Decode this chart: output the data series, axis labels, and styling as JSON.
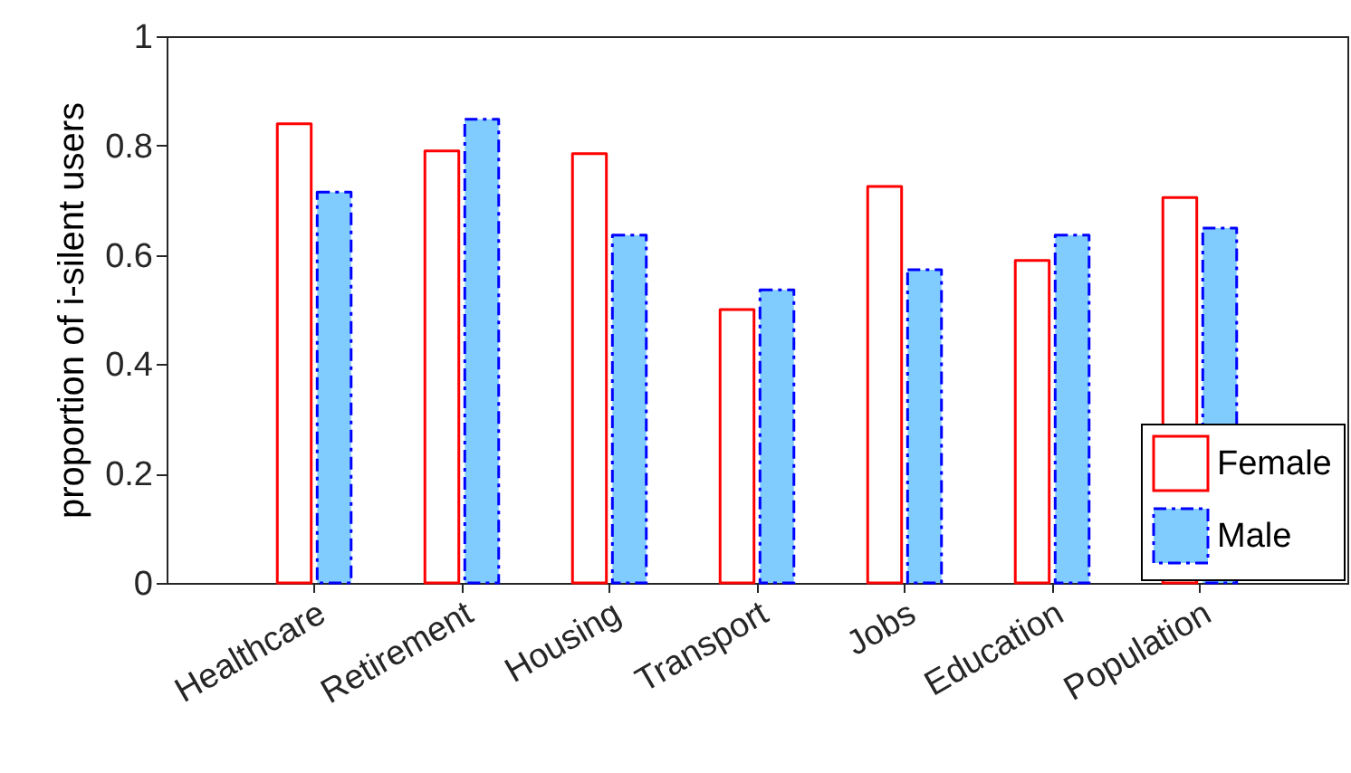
{
  "chart_data": {
    "type": "bar",
    "ylabel": "proportion of i-silent users",
    "categories": [
      "Healthcare",
      "Retirement",
      "Housing",
      "Transport",
      "Jobs",
      "Education",
      "Population"
    ],
    "series": [
      {
        "name": "Female",
        "color": "#ff0000",
        "line_style": "solid",
        "values": [
          0.84,
          0.79,
          0.785,
          0.5,
          0.725,
          0.59,
          0.705
        ]
      },
      {
        "name": "Male",
        "color": "#80ccff",
        "line_style": "dashed",
        "values": [
          0.715,
          0.848,
          0.636,
          0.536,
          0.573,
          0.636,
          0.649
        ]
      }
    ],
    "ylim": [
      0,
      1
    ],
    "yticks": [
      0,
      0.2,
      0.4,
      0.6,
      0.8,
      1
    ],
    "grid": false,
    "legend": "bottom right"
  }
}
